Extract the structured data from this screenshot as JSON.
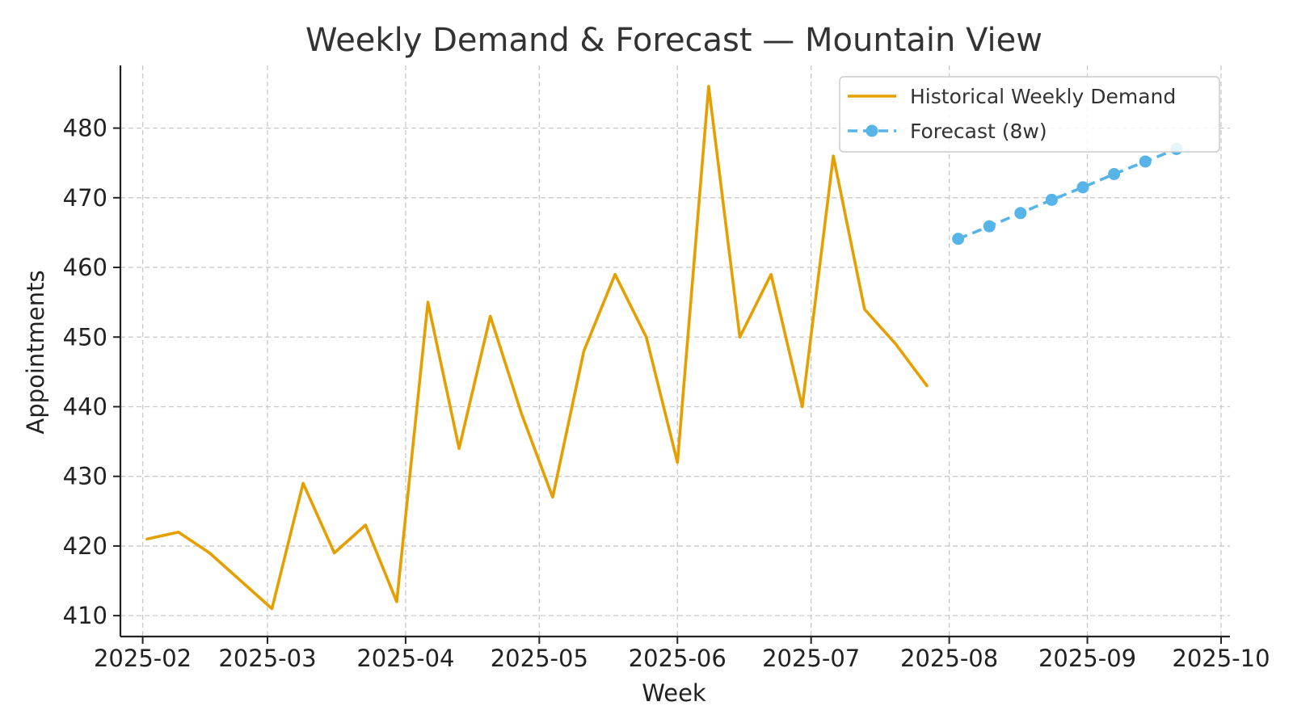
{
  "chart_data": {
    "type": "line",
    "title": "Weekly Demand & Forecast — Mountain View",
    "xlabel": "Week",
    "ylabel": "Appointments",
    "xlim": [
      "2025-01-27",
      "2025-10-03"
    ],
    "ylim": [
      407,
      489
    ],
    "x_ticks": [
      "2025-02",
      "2025-03",
      "2025-04",
      "2025-05",
      "2025-06",
      "2025-07",
      "2025-08",
      "2025-09",
      "2025-10"
    ],
    "y_ticks": [
      410,
      420,
      430,
      440,
      450,
      460,
      470,
      480
    ],
    "grid": true,
    "legend_position": "top-right",
    "series": [
      {
        "name": "Historical Weekly Demand",
        "color": "#E69F00",
        "style": "solid",
        "marker": "none",
        "points": [
          {
            "x": "2025-02-02",
            "y": 421
          },
          {
            "x": "2025-02-09",
            "y": 422
          },
          {
            "x": "2025-02-16",
            "y": 419
          },
          {
            "x": "2025-02-23",
            "y": 415
          },
          {
            "x": "2025-03-02",
            "y": 411
          },
          {
            "x": "2025-03-09",
            "y": 429
          },
          {
            "x": "2025-03-16",
            "y": 419
          },
          {
            "x": "2025-03-23",
            "y": 423
          },
          {
            "x": "2025-03-30",
            "y": 412
          },
          {
            "x": "2025-04-06",
            "y": 455
          },
          {
            "x": "2025-04-13",
            "y": 434
          },
          {
            "x": "2025-04-20",
            "y": 453
          },
          {
            "x": "2025-04-27",
            "y": 439
          },
          {
            "x": "2025-05-04",
            "y": 427
          },
          {
            "x": "2025-05-11",
            "y": 448
          },
          {
            "x": "2025-05-18",
            "y": 459
          },
          {
            "x": "2025-05-25",
            "y": 450
          },
          {
            "x": "2025-06-01",
            "y": 432
          },
          {
            "x": "2025-06-08",
            "y": 486
          },
          {
            "x": "2025-06-15",
            "y": 450
          },
          {
            "x": "2025-06-22",
            "y": 459
          },
          {
            "x": "2025-06-29",
            "y": 440
          },
          {
            "x": "2025-07-06",
            "y": 476
          },
          {
            "x": "2025-07-13",
            "y": 454
          },
          {
            "x": "2025-07-20",
            "y": 449
          },
          {
            "x": "2025-07-27",
            "y": 443
          }
        ]
      },
      {
        "name": "Forecast (8w)",
        "color": "#56B4E9",
        "style": "dashed",
        "marker": "circle",
        "points": [
          {
            "x": "2025-08-03",
            "y": 464.1
          },
          {
            "x": "2025-08-10",
            "y": 465.9
          },
          {
            "x": "2025-08-17",
            "y": 467.8
          },
          {
            "x": "2025-08-24",
            "y": 469.7
          },
          {
            "x": "2025-08-31",
            "y": 471.5
          },
          {
            "x": "2025-09-07",
            "y": 473.4
          },
          {
            "x": "2025-09-14",
            "y": 475.2
          },
          {
            "x": "2025-09-21",
            "y": 477.0
          }
        ]
      }
    ]
  }
}
